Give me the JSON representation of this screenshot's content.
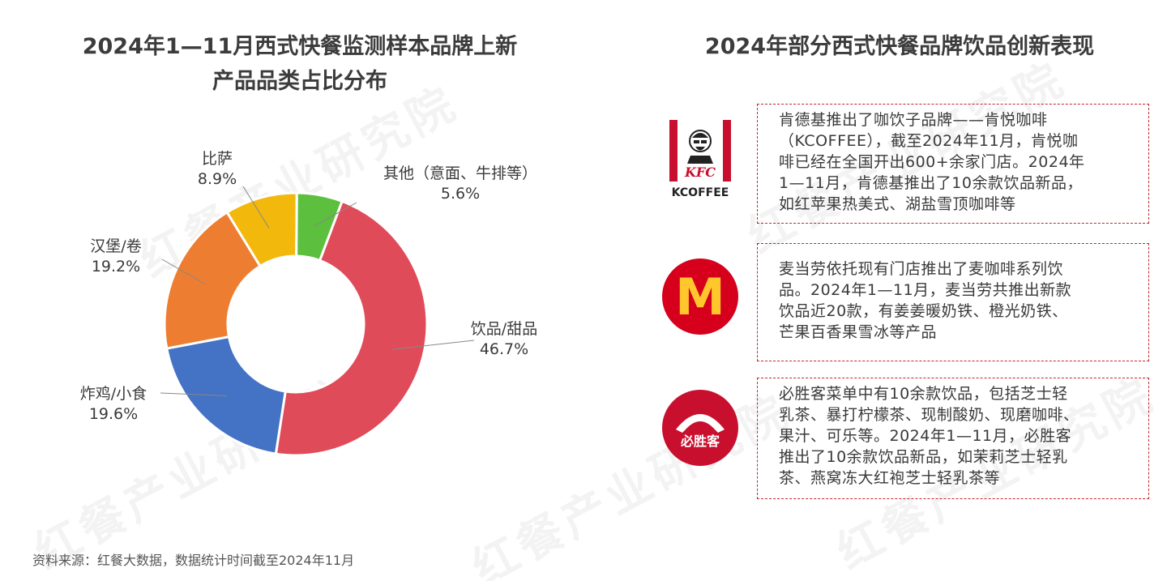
{
  "left_title_line1": "2024年1—11月西式快餐监测样本品牌上新",
  "left_title_line2": "产品品类占比分布",
  "right_title": "2024年部分西式快餐品牌饮品创新表现",
  "watermark": "红餐产业研究院",
  "chart_data": {
    "type": "pie",
    "donut": true,
    "title": "2024年1—11月西式快餐监测样本品牌上新产品品类占比分布",
    "slices": [
      {
        "label": "饮品/甜品",
        "value": 46.7,
        "value_label": "46.7%",
        "color": "#e04b5a"
      },
      {
        "label": "炸鸡/小食",
        "value": 19.6,
        "value_label": "19.6%",
        "color": "#4472c4"
      },
      {
        "label": "汉堡/卷",
        "value": 19.2,
        "value_label": "19.2%",
        "color": "#ed7d31"
      },
      {
        "label": "比萨",
        "value": 8.9,
        "value_label": "8.9%",
        "color": "#f2b80c"
      },
      {
        "label": "其他（意面、牛排等）",
        "value": 5.6,
        "value_label": "5.6%",
        "color": "#5cbf3e"
      }
    ]
  },
  "brands": {
    "kfc": {
      "logo_text": "KFC",
      "sub_text": "KCOFFEE",
      "description": [
        "肯德基推出了咖饮子品牌——肯悦咖啡",
        "（KCOFFEE），截至2024年11月，肯悦咖",
        "啡已经在全国开出600+余家门店。2024年",
        "1—11月，肯德基推出了10余款饮品新品，",
        "如红苹果热美式、湖盐雪顶咖啡等"
      ]
    },
    "mcdonalds": {
      "logo_text": "M",
      "description": [
        "麦当劳依托现有门店推出了麦咖啡系列饮",
        "品。2024年1—11月，麦当劳共推出新款",
        "饮品近20款，有姜姜暖奶铁、橙光奶铁、",
        "芒果百香果雪冰等产品"
      ]
    },
    "pizzahut": {
      "logo_text": "必胜客",
      "description": [
        "必胜客菜单中有10余款饮品，包括芝士轻",
        "乳茶、暴打柠檬茶、现制酸奶、现磨咖啡、",
        "果汁、可乐等。2024年1—11月，必胜客",
        "推出了10余款饮品新品，如茉莉芝士轻乳",
        "茶、燕窝冻大红袍芝士轻乳茶等"
      ]
    }
  },
  "source": "资料来源：红餐大数据，数据统计时间截至2024年11月"
}
